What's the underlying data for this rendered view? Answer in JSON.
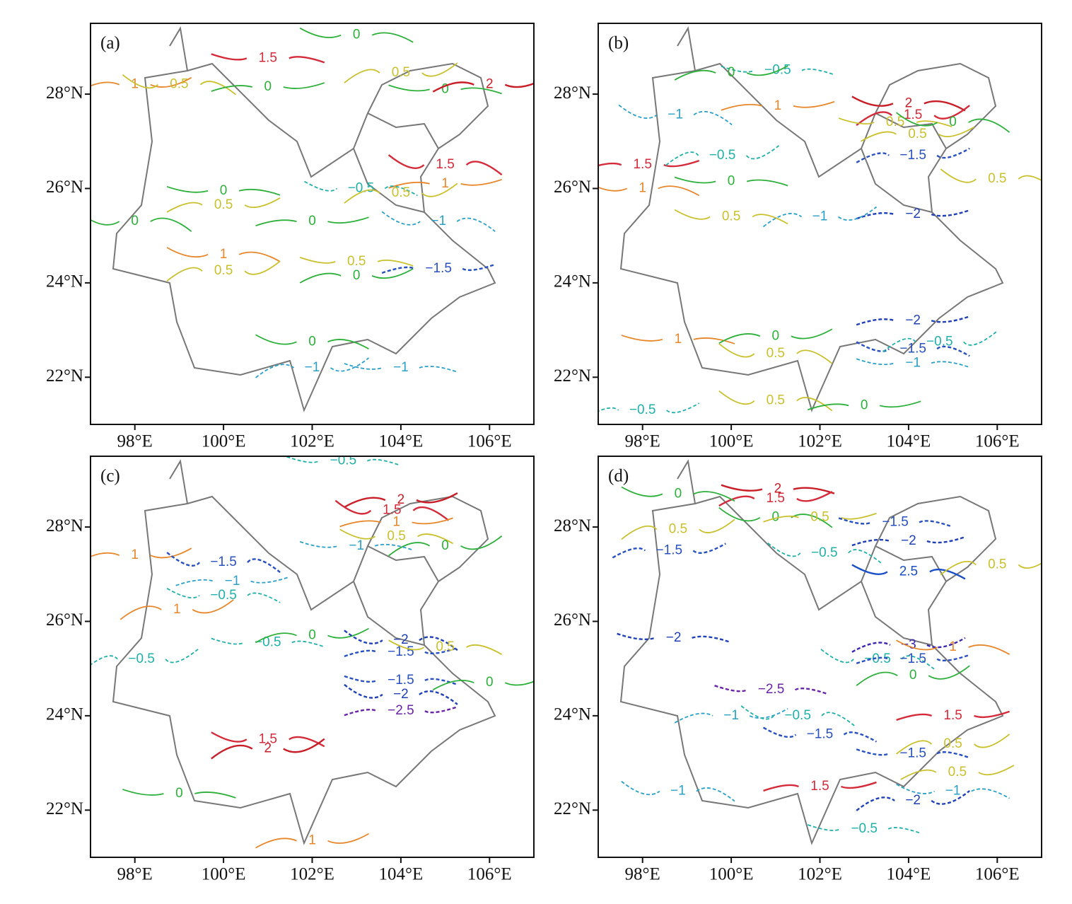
{
  "panels": [
    {
      "label": "(a)",
      "xlim": [
        97,
        107
      ],
      "ylim": [
        21,
        29.5
      ],
      "xticks": [
        {
          "value": 98,
          "label": "98°E"
        },
        {
          "value": 100,
          "label": "100°E"
        },
        {
          "value": 102,
          "label": "102°E"
        },
        {
          "value": 104,
          "label": "104°E"
        },
        {
          "value": 106,
          "label": "106°E"
        }
      ],
      "yticks": [
        {
          "value": 22,
          "label": "22°N"
        },
        {
          "value": 24,
          "label": "24°N"
        },
        {
          "value": 26,
          "label": "26°N"
        },
        {
          "value": 28,
          "label": "28°N"
        }
      ],
      "contour_labels": [
        [
          "1.5",
          101.0,
          28.76
        ],
        [
          "1",
          98.0,
          28.2
        ],
        [
          "0.5",
          99.0,
          28.2
        ],
        [
          "0",
          101.0,
          28.15
        ],
        [
          "0",
          103.0,
          29.25
        ],
        [
          "0.5",
          104.0,
          28.45
        ],
        [
          "0",
          105.0,
          28.1
        ],
        [
          "2",
          106.0,
          28.2
        ],
        [
          "1.5",
          105.0,
          26.5
        ],
        [
          "1",
          105.0,
          26.1
        ],
        [
          "−0.5",
          103.1,
          26.0
        ],
        [
          "0.5",
          104.0,
          25.9
        ],
        [
          "0",
          100.0,
          25.95
        ],
        [
          "0.5",
          100.0,
          25.65
        ],
        [
          "0",
          98.0,
          25.3
        ],
        [
          "0",
          102.0,
          25.3
        ],
        [
          "1",
          100.0,
          24.6
        ],
        [
          "0.5",
          100.0,
          24.25
        ],
        [
          "0.5",
          103.0,
          24.45
        ],
        [
          "0",
          103.0,
          24.15
        ],
        [
          "−1",
          104.85,
          25.3
        ],
        [
          "−1.5",
          104.85,
          24.3
        ],
        [
          "0",
          102.0,
          22.75
        ],
        [
          "−1",
          102.0,
          22.2
        ],
        [
          "−1",
          104.0,
          22.2
        ]
      ]
    },
    {
      "label": "(b)",
      "xlim": [
        97,
        107
      ],
      "ylim": [
        21,
        29.5
      ],
      "xticks": [
        {
          "value": 98,
          "label": "98°E"
        },
        {
          "value": 100,
          "label": "100°E"
        },
        {
          "value": 102,
          "label": "102°E"
        },
        {
          "value": 104,
          "label": "104°E"
        },
        {
          "value": 106,
          "label": "106°E"
        }
      ],
      "yticks": [
        {
          "value": 22,
          "label": "22°N"
        },
        {
          "value": 24,
          "label": "24°N"
        },
        {
          "value": 26,
          "label": "26°N"
        },
        {
          "value": 28,
          "label": "28°N"
        }
      ],
      "contour_labels": [
        [
          "−0.5",
          101.05,
          28.5
        ],
        [
          "0",
          100.0,
          28.45
        ],
        [
          "−1",
          98.74,
          27.56
        ],
        [
          "1",
          101.05,
          27.75
        ],
        [
          "2",
          104.0,
          27.8
        ],
        [
          "1.5",
          104.1,
          27.55
        ],
        [
          "0.5",
          103.7,
          27.4
        ],
        [
          "0.5",
          104.2,
          27.15
        ],
        [
          "0",
          105.0,
          27.4
        ],
        [
          "1.5",
          98.0,
          26.5
        ],
        [
          "1",
          98.0,
          26.0
        ],
        [
          "−0.5",
          99.8,
          26.7
        ],
        [
          "0",
          100.0,
          26.15
        ],
        [
          "−1.5",
          104.1,
          26.7
        ],
        [
          "0.5",
          106.0,
          26.2
        ],
        [
          "−2",
          104.1,
          25.45
        ],
        [
          "0.5",
          100.0,
          25.4
        ],
        [
          "−1",
          102.0,
          25.4
        ],
        [
          "1",
          98.8,
          22.8
        ],
        [
          "0",
          101.0,
          22.87
        ],
        [
          "0.5",
          101.0,
          22.5
        ],
        [
          "−2",
          104.1,
          23.2
        ],
        [
          "−1.5",
          104.1,
          22.6
        ],
        [
          "−0.5",
          104.7,
          22.75
        ],
        [
          "−1",
          104.1,
          22.3
        ],
        [
          "−0.5",
          98.0,
          21.3
        ],
        [
          "0.5",
          101.0,
          21.5
        ],
        [
          "0",
          103.0,
          21.4
        ]
      ]
    },
    {
      "label": "(c)",
      "xlim": [
        97,
        107
      ],
      "ylim": [
        21,
        29.5
      ],
      "xticks": [
        {
          "value": 98,
          "label": "98°E"
        },
        {
          "value": 100,
          "label": "100°E"
        },
        {
          "value": 102,
          "label": "102°E"
        },
        {
          "value": 104,
          "label": "104°E"
        },
        {
          "value": 106,
          "label": "106°E"
        }
      ],
      "yticks": [
        {
          "value": 22,
          "label": "22°N"
        },
        {
          "value": 24,
          "label": "24°N"
        },
        {
          "value": 26,
          "label": "26°N"
        },
        {
          "value": 28,
          "label": "28°N"
        }
      ],
      "contour_labels": [
        [
          "−0.5",
          102.7,
          29.4
        ],
        [
          "2",
          104.0,
          28.57
        ],
        [
          "1.5",
          103.8,
          28.35
        ],
        [
          "1",
          103.9,
          28.1
        ],
        [
          "0.5",
          103.9,
          27.8
        ],
        [
          "0",
          105.0,
          27.6
        ],
        [
          "−1",
          103.0,
          27.6
        ],
        [
          "1",
          98.0,
          27.4
        ],
        [
          "−1.5",
          100.0,
          27.25
        ],
        [
          "−1",
          100.2,
          26.85
        ],
        [
          "−0.5",
          100.0,
          26.55
        ],
        [
          "1",
          98.95,
          26.25
        ],
        [
          "−0.5",
          101.0,
          25.55
        ],
        [
          "0",
          102.0,
          25.7
        ],
        [
          "−2",
          104.0,
          25.6
        ],
        [
          "−1.5",
          104.0,
          25.35
        ],
        [
          "0.5",
          105.0,
          25.45
        ],
        [
          "−0.5",
          98.15,
          25.2
        ],
        [
          "−1.5",
          104.0,
          24.75
        ],
        [
          "0",
          106.0,
          24.7
        ],
        [
          "−2",
          104.0,
          24.45
        ],
        [
          "−2.5",
          104.0,
          24.1
        ],
        [
          "1.5",
          101.0,
          23.5
        ],
        [
          "2",
          101.0,
          23.3
        ],
        [
          "0",
          99.0,
          22.35
        ],
        [
          "1",
          102.0,
          21.35
        ]
      ]
    },
    {
      "label": "(d)",
      "xlim": [
        97,
        107
      ],
      "ylim": [
        21,
        29.5
      ],
      "xticks": [
        {
          "value": 98,
          "label": "98°E"
        },
        {
          "value": 100,
          "label": "100°E"
        },
        {
          "value": 102,
          "label": "102°E"
        },
        {
          "value": 104,
          "label": "104°E"
        },
        {
          "value": 106,
          "label": "106°E"
        }
      ],
      "yticks": [
        {
          "value": 22,
          "label": "22°N"
        },
        {
          "value": 24,
          "label": "24°N"
        },
        {
          "value": 26,
          "label": "26°N"
        },
        {
          "value": 28,
          "label": "28°N"
        }
      ],
      "contour_labels": [
        [
          "2",
          101.05,
          28.8
        ],
        [
          "1.5",
          101.0,
          28.6
        ],
        [
          "0",
          101.0,
          28.2
        ],
        [
          "0.5",
          102.0,
          28.2
        ],
        [
          "0",
          98.8,
          28.7
        ],
        [
          "0.5",
          98.8,
          27.95
        ],
        [
          "−1.5",
          103.7,
          28.1
        ],
        [
          "−1.5",
          98.6,
          27.5
        ],
        [
          "−0.5",
          102.1,
          27.45
        ],
        [
          "−2",
          104.0,
          27.7
        ],
        [
          "2.5",
          104.0,
          27.05
        ],
        [
          "0.5",
          106.0,
          27.2
        ],
        [
          "−2",
          98.7,
          25.65
        ],
        [
          "−3",
          104.0,
          25.5
        ],
        [
          "−0.5",
          103.3,
          25.2
        ],
        [
          "−1.5",
          104.1,
          25.2
        ],
        [
          "1",
          105.0,
          25.45
        ],
        [
          "0",
          104.1,
          24.85
        ],
        [
          "−2.5",
          100.9,
          24.55
        ],
        [
          "−1",
          100.0,
          24.0
        ],
        [
          "−0.5",
          101.5,
          24.0
        ],
        [
          "1.5",
          105.0,
          24.0
        ],
        [
          "−1.5",
          102.0,
          23.6
        ],
        [
          "0.5",
          105.0,
          23.4
        ],
        [
          "−1.5",
          104.1,
          23.2
        ],
        [
          "0.5",
          105.1,
          22.8
        ],
        [
          "−1",
          98.8,
          22.4
        ],
        [
          "1.5",
          102.0,
          22.5
        ],
        [
          "−1",
          105.0,
          22.4
        ],
        [
          "−2",
          104.1,
          22.2
        ],
        [
          "−0.5",
          103.0,
          21.6
        ]
      ]
    }
  ],
  "level_colors": {
    "2.5": "#1a4fc8",
    "2": "#c81e28",
    "1.5": "#d42a3a",
    "1": "#e8862a",
    "0.5": "#c9c02c",
    "0": "#2cb03a",
    "−0.5": "#1fb0a8",
    "−1": "#2aa0c8",
    "−1.5": "#2850c0",
    "−2": "#2040b8",
    "−2.5": "#6a24a8",
    "−3": "#3a28b0"
  }
}
